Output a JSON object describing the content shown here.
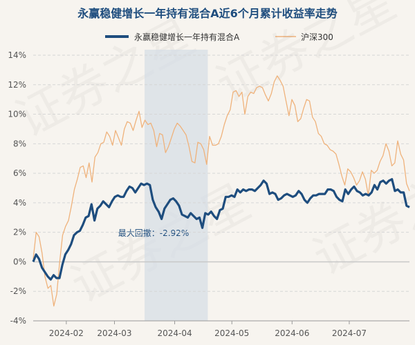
{
  "chart_data": {
    "type": "line",
    "title": "永赢稳健增长一年持有混合A近6个月累计收益率走势",
    "ylim": [
      -4,
      14
    ],
    "y_ticks": [
      -4,
      -2,
      0,
      2,
      4,
      6,
      8,
      10,
      12,
      14
    ],
    "y_tick_labels": [
      "-4%",
      "-2%",
      "0%",
      "2%",
      "4%",
      "6%",
      "8%",
      "10%",
      "12%",
      "14%"
    ],
    "x_ticks": [
      {
        "label": "2024-02",
        "index": 11
      },
      {
        "label": "2024-03",
        "index": 27
      },
      {
        "label": "2024-04",
        "index": 47
      },
      {
        "label": "2024-05",
        "index": 66
      },
      {
        "label": "2024-06",
        "index": 86
      },
      {
        "label": "2024-07",
        "index": 105
      }
    ],
    "x_count": 126,
    "grid": true,
    "legend_position": "top-center",
    "series": [
      {
        "name": "永赢稳健增长一年持有混合A",
        "color": "#1e4d7e",
        "values": [
          0.0,
          0.5,
          0.2,
          -0.4,
          -0.7,
          -1.0,
          -1.2,
          -0.9,
          -1.1,
          -1.1,
          -0.2,
          0.5,
          0.8,
          1.2,
          1.8,
          2.0,
          2.1,
          2.5,
          3.0,
          3.1,
          3.9,
          2.8,
          3.6,
          3.8,
          4.1,
          3.9,
          3.7,
          4.1,
          4.4,
          4.5,
          4.4,
          4.4,
          4.8,
          5.1,
          5.0,
          4.7,
          5.0,
          5.3,
          5.2,
          5.3,
          5.2,
          4.2,
          3.7,
          3.4,
          2.9,
          3.6,
          3.9,
          4.2,
          4.3,
          4.1,
          3.8,
          3.2,
          3.1,
          3.0,
          3.3,
          3.1,
          2.9,
          3.0,
          2.3,
          3.3,
          3.2,
          3.4,
          3.1,
          2.9,
          3.5,
          3.6,
          4.4,
          4.4,
          4.5,
          4.4,
          4.9,
          4.7,
          4.9,
          4.8,
          4.9,
          4.9,
          4.8,
          5.0,
          5.2,
          5.5,
          5.3,
          4.6,
          4.7,
          4.6,
          4.2,
          4.3,
          4.5,
          4.6,
          4.5,
          4.4,
          4.5,
          4.8,
          4.6,
          4.2,
          4.0,
          4.3,
          4.5,
          4.5,
          4.6,
          4.6,
          4.6,
          4.9,
          4.9,
          4.8,
          4.4,
          4.2,
          4.1,
          4.9,
          4.6,
          4.9,
          5.1,
          4.8,
          4.7,
          4.5,
          4.6,
          4.5,
          4.7,
          5.2,
          4.9,
          5.4,
          5.5,
          5.3,
          5.5,
          5.6,
          4.8,
          4.9
        ],
        "extra_tail": [
          4.7,
          4.7,
          3.8,
          3.7
        ]
      },
      {
        "name": "沪深300",
        "color": "#efb27b",
        "values": [
          0.2,
          2.0,
          1.7,
          0.6,
          -1.0,
          -1.8,
          -1.6,
          -3.0,
          -2.2,
          0.0,
          1.8,
          2.4,
          2.8,
          3.8,
          4.9,
          5.6,
          6.4,
          6.5,
          5.7,
          6.7,
          5.4,
          7.1,
          7.4,
          8.0,
          8.1,
          8.8,
          8.5,
          7.9,
          8.9,
          8.4,
          7.9,
          9.0,
          9.5,
          9.4,
          8.9,
          9.6,
          10.2,
          9.1,
          9.6,
          9.3,
          9.4,
          8.9,
          7.8,
          8.7,
          8.6,
          7.4,
          7.8,
          8.4,
          9.0,
          9.4,
          9.2,
          8.9,
          8.6,
          7.8,
          6.8,
          6.7,
          8.1,
          8.0,
          7.6,
          6.6,
          8.5,
          7.9,
          7.9,
          8.0,
          8.5,
          9.3,
          9.9,
          10.3,
          11.5,
          11.6,
          11.2,
          11.5,
          10.0,
          11.2,
          11.5,
          11.4,
          11.8,
          11.9,
          11.8,
          11.3,
          10.9,
          11.4,
          12.2,
          12.6,
          12.3,
          11.9,
          10.9,
          9.9,
          11.0,
          10.6,
          9.5,
          9.7,
          10.4,
          11.0,
          10.9,
          9.8,
          9.5,
          8.7,
          8.5,
          8.0,
          7.9,
          7.6,
          7.5,
          7.3,
          6.6,
          5.8,
          5.2,
          6.3,
          6.1,
          5.7,
          5.2,
          5.5,
          6.1,
          5.6,
          4.5,
          6.2,
          6.0,
          6.2,
          6.8,
          7.2,
          8.0,
          7.5,
          6.5,
          6.7,
          8.2,
          7.3
        ],
        "extra_tail": [
          6.9,
          5.3,
          4.8
        ]
      }
    ],
    "annotation": {
      "label": "最大回撤：-2.92%",
      "start_index": 37,
      "end_index": 58
    },
    "watermark": "证券之星"
  }
}
